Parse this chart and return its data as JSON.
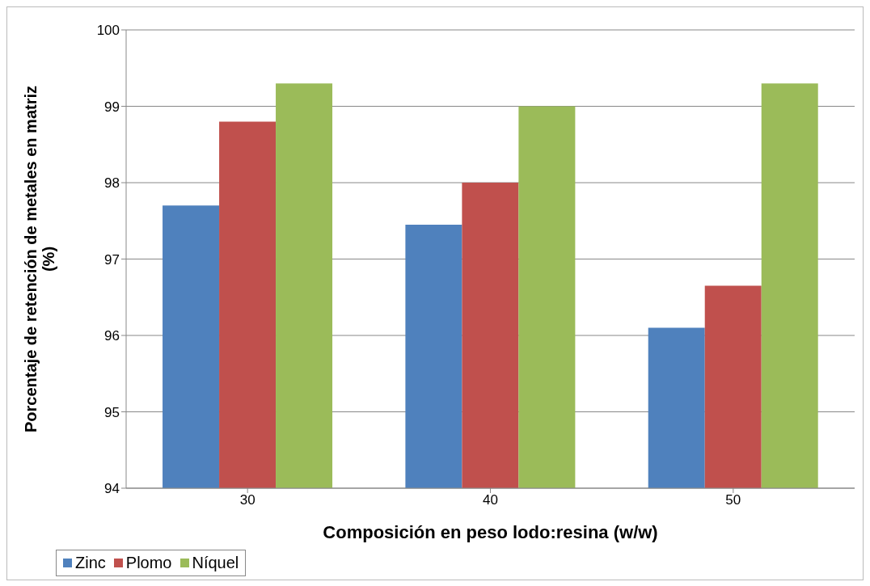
{
  "chart_data": {
    "type": "bar",
    "xlabel": "Composición en peso lodo:resina (w/w)",
    "ylabel": "Porcentaje de retención de metales en matriz (%)",
    "categories": [
      "30",
      "40",
      "50"
    ],
    "series": [
      {
        "name": "Zinc",
        "color": "#4f81bd",
        "values": [
          97.7,
          97.45,
          96.1
        ]
      },
      {
        "name": "Plomo",
        "color": "#c0504d",
        "values": [
          98.8,
          98.0,
          96.65
        ]
      },
      {
        "name": "Níquel",
        "color": "#9bbb59",
        "values": [
          99.3,
          99.0,
          99.3
        ]
      }
    ],
    "ylim": [
      94,
      100
    ],
    "yticks": [
      94,
      95,
      96,
      97,
      98,
      99,
      100
    ],
    "grid": "y",
    "legend": "bottom"
  }
}
